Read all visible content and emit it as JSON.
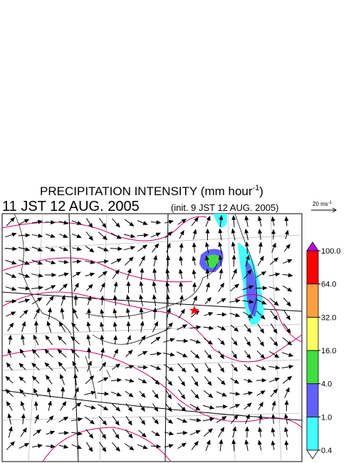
{
  "header": {
    "title": {
      "text": "PRECIPITATION INTENSITY (mm hour",
      "superscript": "-1",
      "close": ")"
    },
    "valid_time": "11 JST 12 AUG. 2005",
    "init_time": "(init. 9 JST 12 AUG. 2005)"
  },
  "vector_scale": {
    "text": "20 ms",
    "superscript": "-1"
  },
  "colorbar": {
    "ticks": [
      0.4,
      {
        "value": 1.0,
        "label": "1.0"
      },
      {
        "value": 4.0,
        "label": "4.0"
      },
      {
        "value": 16.0,
        "label": "16.0"
      },
      {
        "value": 32.0,
        "label": "32.0"
      },
      {
        "value": 64.0,
        "label": "64.0"
      },
      {
        "value": 100.0,
        "label": "100.0"
      }
    ],
    "colors": [
      "#40ffff",
      "#6060ff",
      "#40e040",
      "#ffff60",
      "#ffa040",
      "#ff0000"
    ],
    "under_color": "#ffffff",
    "over_color": "#c000ff"
  }
}
